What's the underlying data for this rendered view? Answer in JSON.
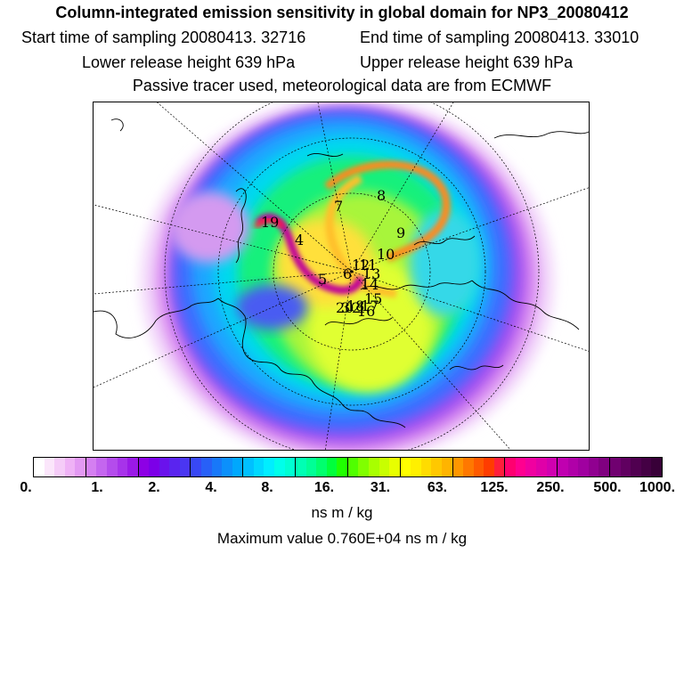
{
  "header": {
    "title": "Column-integrated emission sensitivity in global domain for NP3_20080412",
    "start_time": "Start time of sampling 20080413. 32716",
    "end_time": "End time of sampling 20080413. 33010",
    "lower_height": "Lower release height  639 hPa",
    "upper_height": "Upper release height  639 hPa",
    "tracer_info": "Passive tracer used, meteorological data are from ECMWF"
  },
  "map": {
    "projection": "north-polar-stereographic",
    "release_markers": [
      "1",
      "2",
      "3",
      "4",
      "5",
      "6",
      "7",
      "8",
      "9",
      "10",
      "11",
      "12",
      "13",
      "14",
      "15",
      "16",
      "17",
      "18",
      "19",
      "20"
    ]
  },
  "colorbar": {
    "tick_labels": [
      "0.",
      "1.",
      "2.",
      "4.",
      "8.",
      "16.",
      "31.",
      "63.",
      "125.",
      "250.",
      "500.",
      "1000."
    ],
    "colors": [
      "#ffffff",
      "#fbe6fb",
      "#f5ccf8",
      "#efb2f6",
      "#e399f3",
      "#d47ff1",
      "#c466ef",
      "#b44cec",
      "#a733ea",
      "#9a19e7",
      "#8d00e5",
      "#7c00e8",
      "#6a12ec",
      "#5a24ef",
      "#4a36f2",
      "#3848f5",
      "#2860f7",
      "#1878f9",
      "#0c90fb",
      "#00a8fd",
      "#00c0ff",
      "#00d8ff",
      "#00eeff",
      "#00ffea",
      "#00ffd2",
      "#00ffb4",
      "#00ff96",
      "#00ff6e",
      "#00ff3c",
      "#20ff00",
      "#50ff00",
      "#80ff00",
      "#a8ff00",
      "#c8ff00",
      "#e8ff00",
      "#ffff00",
      "#fff000",
      "#ffdc00",
      "#ffc800",
      "#ffb400",
      "#ff9600",
      "#ff7800",
      "#ff5a00",
      "#ff3c00",
      "#ff1e3c",
      "#ff0070",
      "#ff0090",
      "#f000a0",
      "#e000a8",
      "#d000b0",
      "#c000b0",
      "#b000a8",
      "#a000a0",
      "#900090",
      "#800080",
      "#700070",
      "#600060",
      "#500050",
      "#440044",
      "#380038"
    ],
    "units": "ns m / kg",
    "max_value": "Maximum value  0.760E+04 ns m / kg"
  },
  "chart_data": {
    "type": "heatmap",
    "title": "Column-integrated emission sensitivity in global domain for NP3_20080412",
    "color_scale_levels": [
      0,
      1,
      2,
      4,
      8,
      16,
      31,
      63,
      125,
      250,
      500,
      1000
    ],
    "units": "ns m / kg",
    "maximum_value": 7600
  }
}
